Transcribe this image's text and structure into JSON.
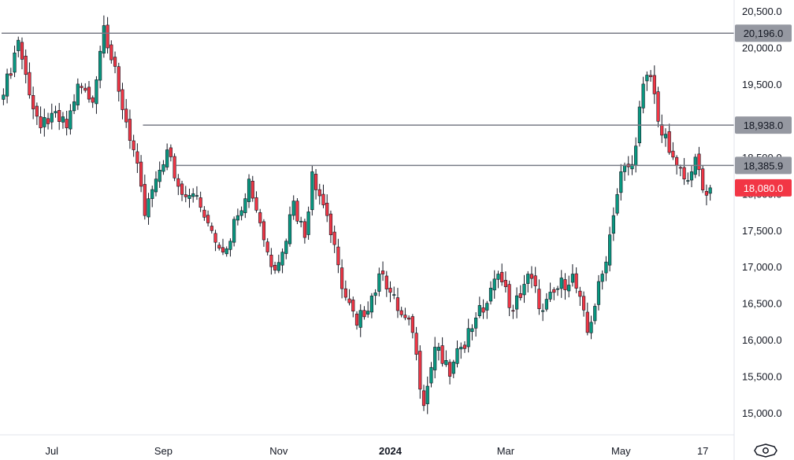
{
  "chart_data": {
    "type": "candlestick",
    "y_axis": {
      "min": 14700,
      "max": 20650,
      "position": "right",
      "ticks": [
        15000,
        15500,
        16000,
        16500,
        17000,
        17500,
        18000,
        18500,
        19000,
        19500,
        20000,
        20500
      ]
    },
    "x_axis": {
      "labels": [
        {
          "text": "Jul",
          "bold": false,
          "index": 13
        },
        {
          "text": "Sep",
          "bold": false,
          "index": 43
        },
        {
          "text": "Nov",
          "bold": false,
          "index": 74
        },
        {
          "text": "2024",
          "bold": true,
          "index": 104
        },
        {
          "text": "Mar",
          "bold": false,
          "index": 135
        },
        {
          "text": "May",
          "bold": false,
          "index": 166
        },
        {
          "text": "17",
          "bold": false,
          "index": 188
        }
      ]
    },
    "levels": [
      {
        "value": 20196.0,
        "label": "20,196.0",
        "start_index": 0
      },
      {
        "value": 18938.0,
        "label": "18,938.0",
        "start_index": 38
      },
      {
        "value": 18385.9,
        "label": "18,385.9",
        "start_index": 47
      }
    ],
    "last_price": {
      "value": 18080.0,
      "label": "18,080.0"
    },
    "anchors": [
      [
        0,
        19350
      ],
      [
        4,
        20100
      ],
      [
        7,
        19350
      ],
      [
        10,
        18900
      ],
      [
        13,
        19100
      ],
      [
        17,
        18900
      ],
      [
        20,
        19500
      ],
      [
        24,
        19250
      ],
      [
        27,
        20300
      ],
      [
        31,
        19400
      ],
      [
        35,
        18600
      ],
      [
        38,
        17700
      ],
      [
        41,
        18200
      ],
      [
        44,
        18600
      ],
      [
        47,
        18100
      ],
      [
        51,
        18000
      ],
      [
        55,
        17600
      ],
      [
        59,
        17200
      ],
      [
        63,
        17700
      ],
      [
        66,
        18200
      ],
      [
        69,
        17600
      ],
      [
        72,
        17000
      ],
      [
        75,
        17200
      ],
      [
        78,
        17900
      ],
      [
        81,
        17400
      ],
      [
        83,
        18300
      ],
      [
        87,
        17700
      ],
      [
        91,
        16700
      ],
      [
        95,
        16200
      ],
      [
        99,
        16600
      ],
      [
        102,
        16900
      ],
      [
        106,
        16400
      ],
      [
        110,
        16100
      ],
      [
        113,
        15100
      ],
      [
        116,
        15900
      ],
      [
        120,
        15500
      ],
      [
        123,
        15900
      ],
      [
        127,
        16300
      ],
      [
        130,
        16500
      ],
      [
        133,
        16900
      ],
      [
        137,
        16400
      ],
      [
        141,
        16900
      ],
      [
        145,
        16400
      ],
      [
        149,
        16700
      ],
      [
        153,
        16900
      ],
      [
        157,
        16100
      ],
      [
        161,
        16900
      ],
      [
        164,
        17700
      ],
      [
        166,
        18300
      ],
      [
        169,
        18400
      ],
      [
        172,
        19500
      ],
      [
        174,
        19600
      ],
      [
        177,
        18800
      ],
      [
        180,
        18500
      ],
      [
        183,
        18200
      ],
      [
        186,
        18500
      ],
      [
        188,
        18050
      ],
      [
        190,
        18080
      ]
    ],
    "colors": {
      "up": "#089981",
      "down": "#f23645",
      "level": "#787b86",
      "badge_level": "#9598a1",
      "badge_last": "#f23645"
    },
    "grid": false
  }
}
